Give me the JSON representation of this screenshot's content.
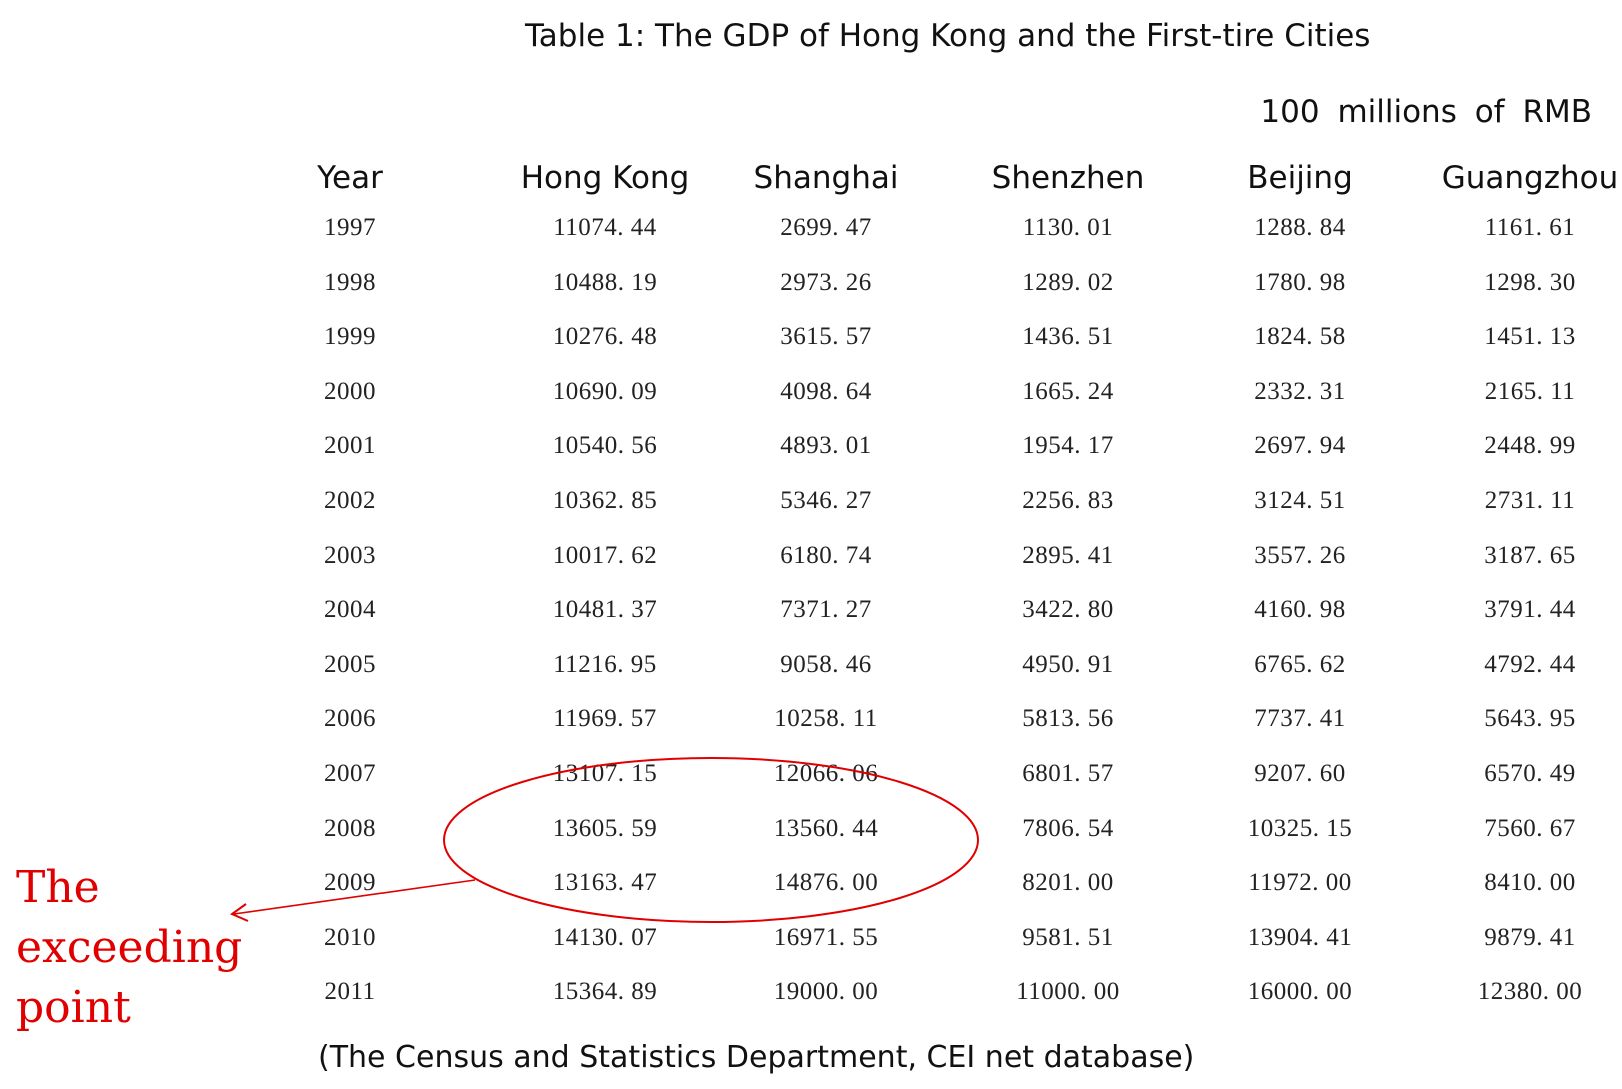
{
  "title": "Table 1: The GDP of Hong Kong and the First-tire Cities",
  "unit": "100  millions  of  RMB",
  "columns": [
    "Year",
    "Hong Kong",
    "Shanghai",
    "Shenzhen",
    "Beijing",
    "Guangzhou"
  ],
  "rows": [
    [
      "1997",
      "11074. 44",
      "2699. 47",
      "1130. 01",
      "1288. 84",
      "1161. 61"
    ],
    [
      "1998",
      "10488. 19",
      "2973. 26",
      "1289. 02",
      "1780. 98",
      "1298. 30"
    ],
    [
      "1999",
      "10276. 48",
      "3615. 57",
      "1436. 51",
      "1824. 58",
      "1451. 13"
    ],
    [
      "2000",
      "10690. 09",
      "4098. 64",
      "1665. 24",
      "2332. 31",
      "2165. 11"
    ],
    [
      "2001",
      "10540. 56",
      "4893. 01",
      "1954. 17",
      "2697. 94",
      "2448. 99"
    ],
    [
      "2002",
      "10362. 85",
      "5346. 27",
      "2256. 83",
      "3124. 51",
      "2731. 11"
    ],
    [
      "2003",
      "10017. 62",
      "6180. 74",
      "2895. 41",
      "3557. 26",
      "3187. 65"
    ],
    [
      "2004",
      "10481. 37",
      "7371. 27",
      "3422. 80",
      "4160. 98",
      "3791. 44"
    ],
    [
      "2005",
      "11216. 95",
      "9058. 46",
      "4950. 91",
      "6765. 62",
      "4792. 44"
    ],
    [
      "2006",
      "11969. 57",
      "10258. 11",
      "5813. 56",
      "7737. 41",
      "5643. 95"
    ],
    [
      "2007",
      "13107. 15",
      "12066. 06",
      "6801. 57",
      "9207. 60",
      "6570. 49"
    ],
    [
      "2008",
      "13605. 59",
      "13560. 44",
      "7806. 54",
      "10325. 15",
      "7560. 67"
    ],
    [
      "2009",
      "13163. 47",
      "14876. 00",
      "8201. 00",
      "11972. 00",
      "8410. 00"
    ],
    [
      "2010",
      "14130. 07",
      "16971. 55",
      "9581. 51",
      "13904. 41",
      "9879. 41"
    ],
    [
      "2011",
      "15364. 89",
      "19000. 00",
      "11000. 00",
      "16000. 00",
      "12380. 00"
    ]
  ],
  "source": "(The Census and Statistics Department, CEI net database)",
  "annotation": "The exceeding point",
  "annotation_color": "#e00000"
}
